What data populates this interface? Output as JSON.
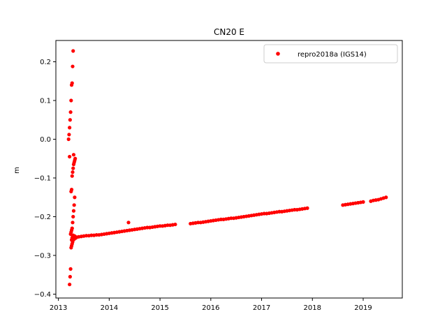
{
  "chart_data": {
    "type": "scatter",
    "title": "CN20 E",
    "xlabel": "",
    "ylabel": "m",
    "xlim": [
      2012.95,
      2019.77
    ],
    "ylim": [
      -0.41,
      0.255
    ],
    "xticks": [
      2013,
      2014,
      2015,
      2016,
      2017,
      2018,
      2019
    ],
    "xtick_labels": [
      "2013",
      "2014",
      "2015",
      "2016",
      "2017",
      "2018",
      "2019"
    ],
    "yticks": [
      -0.4,
      -0.3,
      -0.2,
      -0.1,
      0.0,
      0.1,
      0.2
    ],
    "ytick_labels": [
      "−0.4",
      "−0.3",
      "−0.2",
      "−0.1",
      "0.0",
      "0.1",
      "0.2"
    ],
    "grid": false,
    "legend_position": "top-right",
    "series": [
      {
        "name": "repro2018a (IGS14)",
        "color": "#ff0000",
        "marker": "circle",
        "x": [
          2013.2,
          2013.21,
          2013.22,
          2013.22,
          2013.23,
          2013.24,
          2013.25,
          2013.26,
          2013.27,
          2013.28,
          2013.29,
          2013.3,
          2013.22,
          2013.23,
          2013.24,
          2013.25,
          2013.26,
          2013.27,
          2013.28,
          2013.29,
          2013.3,
          2013.31,
          2013.32,
          2013.24,
          2013.25,
          2013.26,
          2013.27,
          2013.28,
          2013.29,
          2013.3,
          2013.31,
          2013.32,
          2013.25,
          2013.26,
          2013.27,
          2013.28,
          2013.29,
          2013.3,
          2013.31,
          2013.32,
          2013.33,
          2013.26,
          2013.27,
          2013.28,
          2013.29,
          2013.3,
          2013.31,
          2013.34,
          2013.36,
          2013.4,
          2013.45,
          2013.5,
          2013.55,
          2013.6,
          2013.65,
          2013.7,
          2013.75,
          2013.8,
          2013.85,
          2013.9,
          2013.95,
          2014.0,
          2014.05,
          2014.1,
          2014.15,
          2014.2,
          2014.25,
          2014.3,
          2014.35,
          2014.38,
          2014.4,
          2014.45,
          2014.5,
          2014.55,
          2014.6,
          2014.65,
          2014.7,
          2014.75,
          2014.8,
          2014.85,
          2014.9,
          2014.95,
          2015.0,
          2015.05,
          2015.1,
          2015.15,
          2015.2,
          2015.25,
          2015.3,
          2015.6,
          2015.65,
          2015.7,
          2015.75,
          2015.8,
          2015.85,
          2015.9,
          2015.95,
          2016.0,
          2016.05,
          2016.1,
          2016.15,
          2016.2,
          2016.25,
          2016.3,
          2016.35,
          2016.4,
          2016.45,
          2016.5,
          2016.55,
          2016.6,
          2016.65,
          2016.7,
          2016.75,
          2016.8,
          2016.85,
          2016.9,
          2016.95,
          2017.0,
          2017.05,
          2017.1,
          2017.15,
          2017.2,
          2017.25,
          2017.3,
          2017.35,
          2017.4,
          2017.45,
          2017.5,
          2017.55,
          2017.6,
          2017.65,
          2017.7,
          2017.75,
          2017.8,
          2017.85,
          2017.9,
          2018.6,
          2018.65,
          2018.7,
          2018.75,
          2018.8,
          2018.85,
          2018.9,
          2018.95,
          2019.0,
          2019.15,
          2019.2,
          2019.25,
          2019.3,
          2019.35,
          2019.4,
          2019.45
        ],
        "y": [
          0.0,
          0.012,
          0.03,
          -0.045,
          0.05,
          0.07,
          0.1,
          0.14,
          0.145,
          0.188,
          0.228,
          -0.04,
          -0.375,
          -0.355,
          -0.335,
          -0.28,
          -0.275,
          -0.27,
          -0.265,
          -0.26,
          -0.255,
          -0.252,
          -0.25,
          -0.245,
          -0.24,
          -0.235,
          -0.23,
          -0.215,
          -0.2,
          -0.185,
          -0.17,
          -0.15,
          -0.135,
          -0.13,
          -0.095,
          -0.085,
          -0.075,
          -0.065,
          -0.06,
          -0.055,
          -0.05,
          -0.26,
          -0.255,
          -0.25,
          -0.248,
          -0.252,
          -0.258,
          -0.255,
          -0.253,
          -0.252,
          -0.251,
          -0.25,
          -0.249,
          -0.249,
          -0.248,
          -0.248,
          -0.247,
          -0.247,
          -0.246,
          -0.245,
          -0.244,
          -0.243,
          -0.242,
          -0.241,
          -0.24,
          -0.239,
          -0.238,
          -0.237,
          -0.236,
          -0.215,
          -0.235,
          -0.234,
          -0.233,
          -0.232,
          -0.231,
          -0.23,
          -0.229,
          -0.228,
          -0.228,
          -0.227,
          -0.226,
          -0.225,
          -0.224,
          -0.224,
          -0.223,
          -0.222,
          -0.222,
          -0.221,
          -0.22,
          -0.218,
          -0.217,
          -0.216,
          -0.215,
          -0.215,
          -0.214,
          -0.213,
          -0.212,
          -0.211,
          -0.21,
          -0.209,
          -0.208,
          -0.207,
          -0.207,
          -0.206,
          -0.205,
          -0.204,
          -0.204,
          -0.203,
          -0.202,
          -0.201,
          -0.2,
          -0.199,
          -0.198,
          -0.197,
          -0.196,
          -0.195,
          -0.194,
          -0.193,
          -0.192,
          -0.192,
          -0.191,
          -0.19,
          -0.189,
          -0.188,
          -0.187,
          -0.187,
          -0.186,
          -0.185,
          -0.184,
          -0.183,
          -0.182,
          -0.182,
          -0.181,
          -0.18,
          -0.179,
          -0.178,
          -0.17,
          -0.169,
          -0.168,
          -0.167,
          -0.166,
          -0.165,
          -0.164,
          -0.163,
          -0.162,
          -0.16,
          -0.158,
          -0.157,
          -0.156,
          -0.154,
          -0.152,
          -0.15
        ]
      }
    ]
  }
}
